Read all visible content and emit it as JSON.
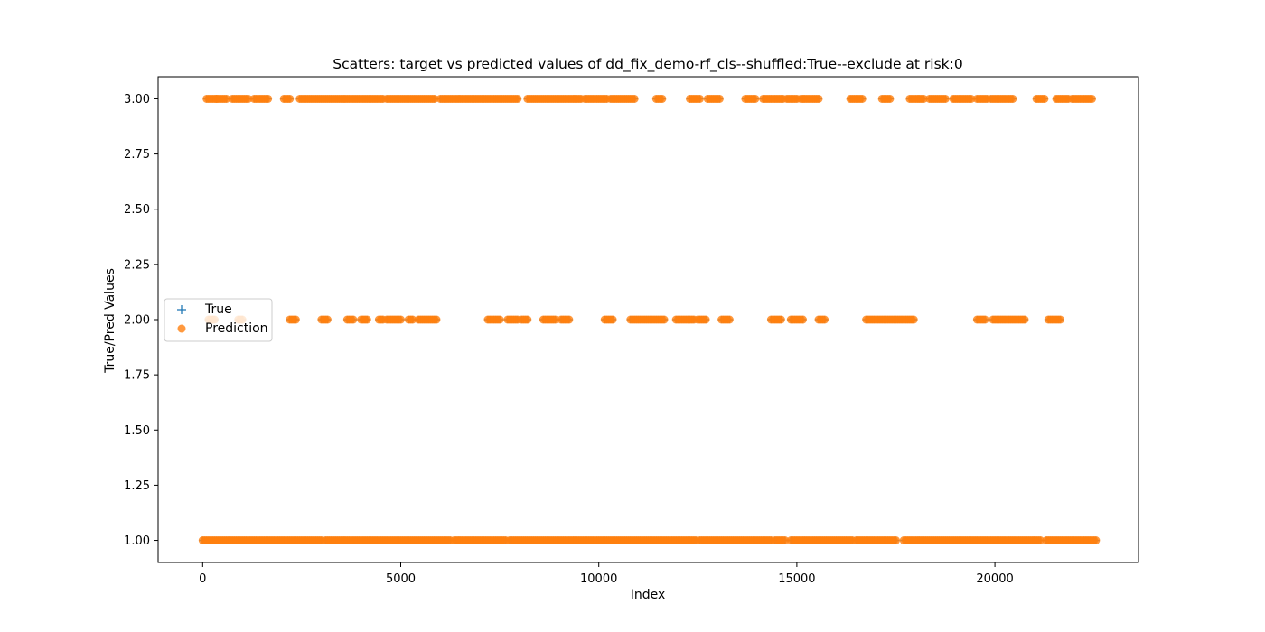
{
  "chart_data": {
    "type": "scatter",
    "title": "Scatters: target vs predicted values of dd_fix_demo-rf_cls--shuffled:True--exclude at risk:0",
    "xlabel": "Index",
    "ylabel": "True/Pred Values",
    "xlim": [
      -1125,
      23625
    ],
    "ylim": [
      0.9,
      3.1
    ],
    "xticks": [
      0,
      5000,
      10000,
      15000,
      20000
    ],
    "yticks": [
      1.0,
      1.25,
      1.5,
      1.75,
      2.0,
      2.25,
      2.5,
      2.75,
      3.0
    ],
    "ytick_format": "2dp",
    "grid": false,
    "legend_position": "center-left",
    "colors": {
      "true": "#1f77b4",
      "prediction": "#ff7f0e"
    },
    "series": [
      {
        "name": "True",
        "marker": "plus",
        "note_hidden_under_predictions": true,
        "clusters": [
          {
            "y": 3.0,
            "ranges": [
              [
                100,
                350
              ],
              [
                350,
                600
              ],
              [
                750,
                1150
              ],
              [
                1300,
                1650
              ],
              [
                2050,
                2200
              ],
              [
                2450,
                2750
              ],
              [
                2800,
                4550
              ],
              [
                4650,
                5850
              ],
              [
                6000,
                6800
              ],
              [
                6850,
                7950
              ],
              [
                8200,
                8550
              ],
              [
                8600,
                9050
              ],
              [
                9100,
                9550
              ],
              [
                9650,
                10200
              ],
              [
                10300,
                10900
              ],
              [
                11450,
                11600
              ],
              [
                12300,
                12550
              ],
              [
                12750,
                13050
              ],
              [
                13700,
                13950
              ],
              [
                14150,
                14650
              ],
              [
                14750,
                15000
              ],
              [
                15100,
                15550
              ],
              [
                16350,
                16650
              ],
              [
                17150,
                17350
              ],
              [
                17850,
                18200
              ],
              [
                18350,
                18750
              ],
              [
                18950,
                19400
              ],
              [
                19550,
                19800
              ],
              [
                19900,
                20100
              ],
              [
                20150,
                20450
              ],
              [
                21050,
                21250
              ],
              [
                21550,
                21850
              ],
              [
                21950,
                22450
              ]
            ]
          },
          {
            "y": 2.0,
            "ranges": [
              [
                150,
                300
              ],
              [
                900,
                1000
              ],
              [
                2200,
                2350
              ],
              [
                3000,
                3150
              ],
              [
                3650,
                3800
              ],
              [
                4000,
                4150
              ],
              [
                4450,
                4550
              ],
              [
                4650,
                5000
              ],
              [
                5200,
                5300
              ],
              [
                5450,
                5700
              ],
              [
                5750,
                5900
              ],
              [
                7200,
                7500
              ],
              [
                7700,
                7950
              ],
              [
                8050,
                8200
              ],
              [
                8600,
                8900
              ],
              [
                9050,
                9250
              ],
              [
                10150,
                10350
              ],
              [
                10800,
                11300
              ],
              [
                11350,
                11650
              ],
              [
                11950,
                12400
              ],
              [
                12500,
                12700
              ],
              [
                13100,
                13300
              ],
              [
                14350,
                14600
              ],
              [
                14850,
                15150
              ],
              [
                15550,
                15700
              ],
              [
                16750,
                17500
              ],
              [
                17550,
                17950
              ],
              [
                19550,
                19750
              ],
              [
                19950,
                20300
              ],
              [
                20350,
                20500
              ],
              [
                20550,
                20750
              ],
              [
                21350,
                21650
              ]
            ]
          },
          {
            "y": 1.0,
            "ranges": [
              [
                0,
                3000
              ],
              [
                3100,
                3600
              ],
              [
                3650,
                4150
              ],
              [
                4200,
                6250
              ],
              [
                6350,
                7300
              ],
              [
                7350,
                7650
              ],
              [
                7750,
                9900
              ],
              [
                9950,
                10550
              ],
              [
                10600,
                11000
              ],
              [
                11050,
                12450
              ],
              [
                12550,
                14350
              ],
              [
                14450,
                14700
              ],
              [
                14850,
                16400
              ],
              [
                16500,
                17500
              ],
              [
                17700,
                19000
              ],
              [
                19050,
                21150
              ],
              [
                21300,
                21850
              ],
              [
                21900,
                22550
              ]
            ]
          }
        ]
      },
      {
        "name": "Prediction",
        "marker": "circle",
        "clusters": [
          {
            "y": 3.0,
            "ranges": [
              [
                100,
                350
              ],
              [
                350,
                600
              ],
              [
                750,
                1150
              ],
              [
                1300,
                1650
              ],
              [
                2050,
                2200
              ],
              [
                2450,
                2750
              ],
              [
                2800,
                4550
              ],
              [
                4650,
                5850
              ],
              [
                6000,
                6800
              ],
              [
                6850,
                7950
              ],
              [
                8200,
                8550
              ],
              [
                8600,
                9050
              ],
              [
                9100,
                9550
              ],
              [
                9650,
                10200
              ],
              [
                10300,
                10900
              ],
              [
                11450,
                11600
              ],
              [
                12300,
                12550
              ],
              [
                12750,
                13050
              ],
              [
                13700,
                13950
              ],
              [
                14150,
                14650
              ],
              [
                14750,
                15000
              ],
              [
                15100,
                15550
              ],
              [
                16350,
                16650
              ],
              [
                17150,
                17350
              ],
              [
                17850,
                18200
              ],
              [
                18350,
                18750
              ],
              [
                18950,
                19400
              ],
              [
                19550,
                19800
              ],
              [
                19900,
                20100
              ],
              [
                20150,
                20450
              ],
              [
                21050,
                21250
              ],
              [
                21550,
                21850
              ],
              [
                21950,
                22450
              ]
            ]
          },
          {
            "y": 2.0,
            "ranges": [
              [
                150,
                300
              ],
              [
                900,
                1000
              ],
              [
                2200,
                2350
              ],
              [
                3000,
                3150
              ],
              [
                3650,
                3800
              ],
              [
                4000,
                4150
              ],
              [
                4450,
                4550
              ],
              [
                4650,
                5000
              ],
              [
                5200,
                5300
              ],
              [
                5450,
                5700
              ],
              [
                5750,
                5900
              ],
              [
                7200,
                7500
              ],
              [
                7700,
                7950
              ],
              [
                8050,
                8200
              ],
              [
                8600,
                8900
              ],
              [
                9050,
                9250
              ],
              [
                10150,
                10350
              ],
              [
                10800,
                11300
              ],
              [
                11350,
                11650
              ],
              [
                11950,
                12400
              ],
              [
                12500,
                12700
              ],
              [
                13100,
                13300
              ],
              [
                14350,
                14600
              ],
              [
                14850,
                15150
              ],
              [
                15550,
                15700
              ],
              [
                16750,
                17500
              ],
              [
                17550,
                17950
              ],
              [
                19550,
                19750
              ],
              [
                19950,
                20300
              ],
              [
                20350,
                20500
              ],
              [
                20550,
                20750
              ],
              [
                21350,
                21650
              ]
            ]
          },
          {
            "y": 1.0,
            "ranges": [
              [
                0,
                3000
              ],
              [
                3100,
                3600
              ],
              [
                3650,
                4150
              ],
              [
                4200,
                6250
              ],
              [
                6350,
                7300
              ],
              [
                7350,
                7650
              ],
              [
                7750,
                9900
              ],
              [
                9950,
                10550
              ],
              [
                10600,
                11000
              ],
              [
                11050,
                12450
              ],
              [
                12550,
                14350
              ],
              [
                14450,
                14700
              ],
              [
                14850,
                16400
              ],
              [
                16500,
                17500
              ],
              [
                17700,
                19000
              ],
              [
                19050,
                21150
              ],
              [
                21300,
                21850
              ],
              [
                21900,
                22550
              ]
            ]
          }
        ]
      }
    ]
  }
}
